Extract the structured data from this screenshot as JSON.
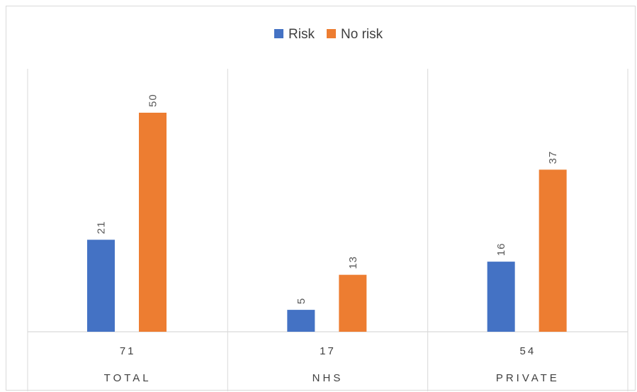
{
  "chart_data": {
    "type": "bar",
    "categories": [
      "TOTAL",
      "NHS",
      "PRIVATE"
    ],
    "totals": [
      "71",
      "17",
      "54"
    ],
    "series": [
      {
        "name": "Risk",
        "values": [
          21,
          5,
          16
        ],
        "color": "#4472C4"
      },
      {
        "name": "No risk",
        "values": [
          50,
          13,
          37
        ],
        "color": "#ED7D31"
      }
    ],
    "title": "",
    "xlabel": "",
    "ylabel": "",
    "ylim": [
      0,
      50
    ],
    "grid": false,
    "legend_position": "top"
  }
}
